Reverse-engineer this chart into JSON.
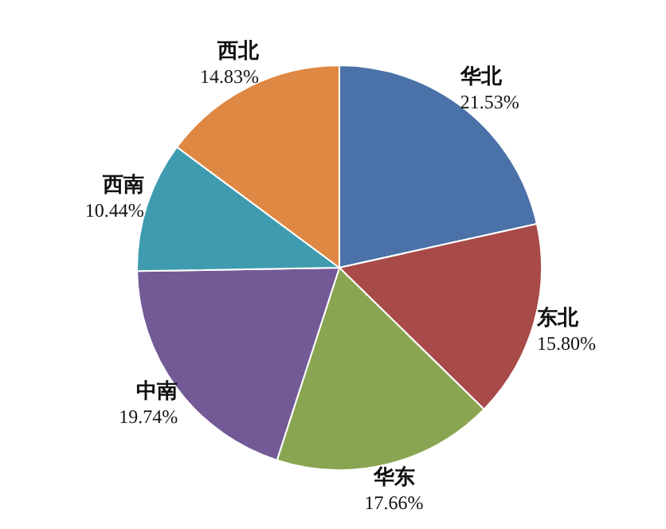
{
  "chart_data": {
    "type": "pie",
    "categories": [
      "华北",
      "东北",
      "华东",
      "中南",
      "西南",
      "西北"
    ],
    "values": [
      21.53,
      15.8,
      17.66,
      19.74,
      10.44,
      14.83
    ],
    "value_labels": [
      "21.53%",
      "15.80%",
      "17.66%",
      "19.74%",
      "10.44%",
      "14.83%"
    ],
    "colors": [
      "#4a72a8",
      "#a84a48",
      "#8aa552",
      "#735a96",
      "#3f9bb0",
      "#de8844"
    ]
  }
}
